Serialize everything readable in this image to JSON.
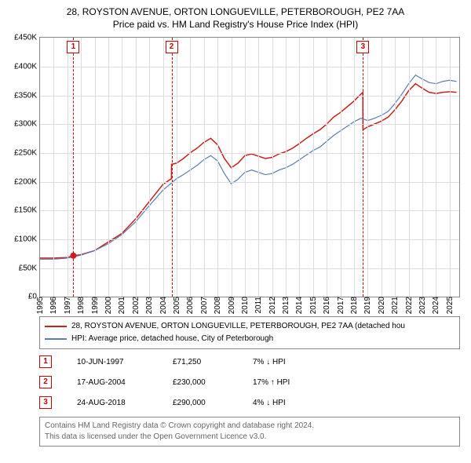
{
  "title_line1": "28, ROYSTON AVENUE, ORTON LONGUEVILLE, PETERBOROUGH, PE2 7AA",
  "title_line2": "Price paid vs. HM Land Registry's House Price Index (HPI)",
  "axes": {
    "xlim": [
      1995,
      2025.7
    ],
    "ylim": [
      0,
      450000
    ],
    "ytick_step": 50000,
    "ytick_labels": [
      "£0",
      "£50K",
      "£100K",
      "£150K",
      "£200K",
      "£250K",
      "£300K",
      "£350K",
      "£400K",
      "£450K"
    ],
    "xticks": [
      1995,
      1996,
      1997,
      1998,
      1999,
      2000,
      2001,
      2002,
      2003,
      2004,
      2005,
      2006,
      2007,
      2008,
      2009,
      2010,
      2011,
      2012,
      2013,
      2014,
      2015,
      2016,
      2017,
      2018,
      2019,
      2020,
      2021,
      2022,
      2023,
      2024,
      2025
    ],
    "xtick_labels": [
      "1995",
      "1996",
      "1997",
      "1998",
      "1999",
      "2000",
      "2001",
      "2002",
      "2003",
      "2004",
      "2005",
      "2006",
      "2007",
      "2008",
      "2009",
      "2010",
      "2011",
      "2012",
      "2013",
      "2014",
      "2015",
      "2016",
      "2017",
      "2018",
      "2019",
      "2020",
      "2021",
      "2022",
      "2023",
      "2024",
      "2025"
    ],
    "grid_color": "#dddddd",
    "border_color": "#888888",
    "background_color": "#ffffff",
    "label_fontsize": 10
  },
  "series": [
    {
      "name": "price_paid",
      "color": "#cc1f1f",
      "width": 1.5,
      "points": [
        [
          1995.0,
          67000
        ],
        [
          1996.0,
          67000
        ],
        [
          1997.0,
          68000
        ],
        [
          1997.44,
          71250
        ],
        [
          1997.45,
          71250
        ],
        [
          1998.0,
          73000
        ],
        [
          1999.0,
          80000
        ],
        [
          2000.0,
          95000
        ],
        [
          2001.0,
          110000
        ],
        [
          2002.0,
          135000
        ],
        [
          2003.0,
          165000
        ],
        [
          2004.0,
          195000
        ],
        [
          2004.62,
          205000
        ],
        [
          2004.63,
          230000
        ],
        [
          2005.0,
          232000
        ],
        [
          2005.5,
          240000
        ],
        [
          2006.0,
          250000
        ],
        [
          2006.5,
          258000
        ],
        [
          2007.0,
          268000
        ],
        [
          2007.5,
          275000
        ],
        [
          2008.0,
          264000
        ],
        [
          2008.5,
          240000
        ],
        [
          2009.0,
          224000
        ],
        [
          2009.5,
          232000
        ],
        [
          2010.0,
          245000
        ],
        [
          2010.5,
          248000
        ],
        [
          2011.0,
          244000
        ],
        [
          2011.5,
          240000
        ],
        [
          2012.0,
          242000
        ],
        [
          2012.5,
          248000
        ],
        [
          2013.0,
          252000
        ],
        [
          2013.5,
          258000
        ],
        [
          2014.0,
          266000
        ],
        [
          2014.5,
          275000
        ],
        [
          2015.0,
          283000
        ],
        [
          2015.5,
          290000
        ],
        [
          2016.0,
          300000
        ],
        [
          2016.5,
          312000
        ],
        [
          2017.0,
          320000
        ],
        [
          2017.5,
          330000
        ],
        [
          2018.0,
          340000
        ],
        [
          2018.5,
          352000
        ],
        [
          2018.64,
          355000
        ],
        [
          2018.65,
          290000
        ],
        [
          2019.0,
          295000
        ],
        [
          2019.5,
          300000
        ],
        [
          2020.0,
          305000
        ],
        [
          2020.5,
          312000
        ],
        [
          2021.0,
          325000
        ],
        [
          2021.5,
          340000
        ],
        [
          2022.0,
          358000
        ],
        [
          2022.5,
          370000
        ],
        [
          2023.0,
          362000
        ],
        [
          2023.5,
          355000
        ],
        [
          2024.0,
          353000
        ],
        [
          2024.5,
          355000
        ],
        [
          2025.0,
          356000
        ],
        [
          2025.5,
          355000
        ]
      ]
    },
    {
      "name": "hpi",
      "color": "#5b7eaf",
      "width": 1.2,
      "points": [
        [
          1995.0,
          65000
        ],
        [
          1996.0,
          65000
        ],
        [
          1997.0,
          67000
        ],
        [
          1998.0,
          72000
        ],
        [
          1999.0,
          80000
        ],
        [
          2000.0,
          92000
        ],
        [
          2001.0,
          108000
        ],
        [
          2002.0,
          130000
        ],
        [
          2003.0,
          158000
        ],
        [
          2004.0,
          185000
        ],
        [
          2005.0,
          205000
        ],
        [
          2005.5,
          212000
        ],
        [
          2006.0,
          220000
        ],
        [
          2006.5,
          228000
        ],
        [
          2007.0,
          238000
        ],
        [
          2007.5,
          245000
        ],
        [
          2008.0,
          236000
        ],
        [
          2008.5,
          214000
        ],
        [
          2009.0,
          196000
        ],
        [
          2009.5,
          204000
        ],
        [
          2010.0,
          216000
        ],
        [
          2010.5,
          220000
        ],
        [
          2011.0,
          216000
        ],
        [
          2011.5,
          212000
        ],
        [
          2012.0,
          214000
        ],
        [
          2012.5,
          220000
        ],
        [
          2013.0,
          224000
        ],
        [
          2013.5,
          230000
        ],
        [
          2014.0,
          238000
        ],
        [
          2014.5,
          246000
        ],
        [
          2015.0,
          254000
        ],
        [
          2015.5,
          260000
        ],
        [
          2016.0,
          270000
        ],
        [
          2016.5,
          280000
        ],
        [
          2017.0,
          288000
        ],
        [
          2017.5,
          296000
        ],
        [
          2018.0,
          304000
        ],
        [
          2018.5,
          310000
        ],
        [
          2019.0,
          306000
        ],
        [
          2019.5,
          310000
        ],
        [
          2020.0,
          315000
        ],
        [
          2020.5,
          322000
        ],
        [
          2021.0,
          336000
        ],
        [
          2021.5,
          352000
        ],
        [
          2022.0,
          370000
        ],
        [
          2022.5,
          385000
        ],
        [
          2023.0,
          378000
        ],
        [
          2023.5,
          372000
        ],
        [
          2024.0,
          370000
        ],
        [
          2024.5,
          374000
        ],
        [
          2025.0,
          376000
        ],
        [
          2025.5,
          374000
        ]
      ]
    }
  ],
  "events": [
    {
      "n": "1",
      "x": 1997.44,
      "date": "10-JUN-1997",
      "price": "£71,250",
      "diff": "7% ↓ HPI"
    },
    {
      "n": "2",
      "x": 2004.63,
      "date": "17-AUG-2004",
      "price": "£230,000",
      "diff": "17% ↑ HPI"
    },
    {
      "n": "3",
      "x": 2018.65,
      "date": "24-AUG-2018",
      "price": "£290,000",
      "diff": "4% ↓ HPI"
    }
  ],
  "event_marker": {
    "border_color": "#cc0000",
    "text_color": "#cc0000",
    "dash_color": "#cc0000"
  },
  "event_marker_point": {
    "at_event_index": 0,
    "y": 71250,
    "radius": 4,
    "fill": "#cc1f1f"
  },
  "legend": {
    "items": [
      {
        "color": "#cc1f1f",
        "label": "28, ROYSTON AVENUE, ORTON LONGUEVILLE, PETERBOROUGH, PE2 7AA (detached hou"
      },
      {
        "color": "#5b7eaf",
        "label": "HPI: Average price, detached house, City of Peterborough"
      }
    ]
  },
  "attribution": {
    "line1": "Contains HM Land Registry data © Crown copyright and database right 2024.",
    "line2": "This data is licensed under the Open Government Licence v3.0."
  }
}
